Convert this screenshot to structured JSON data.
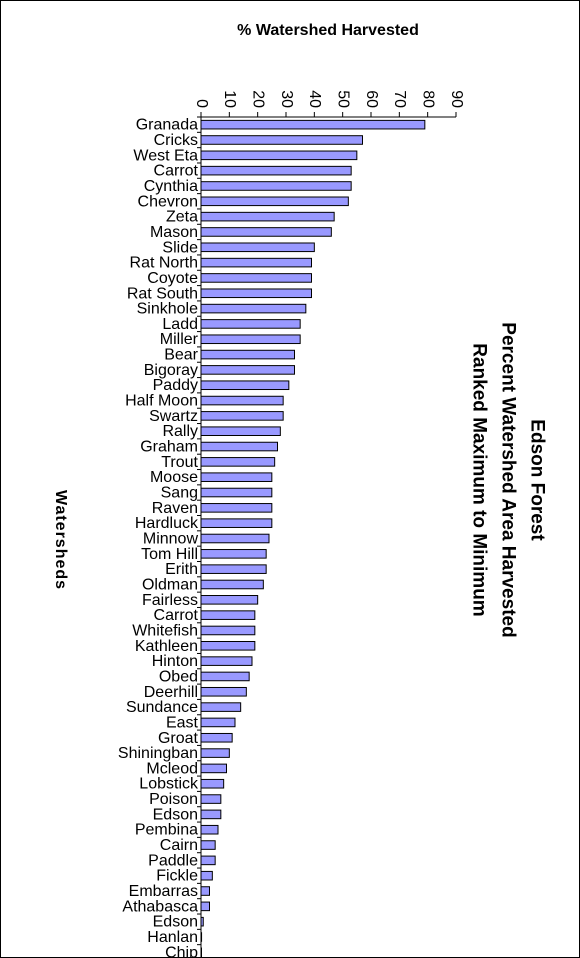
{
  "chart_data": {
    "type": "bar",
    "orientation": "horizontal",
    "title_lines": [
      "Edson Forest",
      "Percent Watershed Area Harvested",
      "Ranked Maximum to Minimum"
    ],
    "xlabel": "% Watershed Harvested",
    "ylabel": "Watersheds",
    "xlim": [
      0,
      90
    ],
    "xticks": [
      0,
      10,
      20,
      30,
      40,
      50,
      60,
      70,
      80,
      90
    ],
    "grid": false,
    "legend": "none",
    "bar_color": "#9999ff",
    "categories": [
      "Granada",
      "Cricks",
      "West Eta",
      "Carrot",
      "Cynthia",
      "Chevron",
      "Zeta",
      "Mason",
      "Slide",
      "Rat North",
      "Coyote",
      "Rat South",
      "Sinkhole",
      "Ladd",
      "Miller",
      "Bear",
      "Bigoray",
      "Paddy",
      "Half Moon",
      "Swartz",
      "Rally",
      "Graham",
      "Trout",
      "Moose",
      "Sang",
      "Raven",
      "Hardluck",
      "Minnow",
      "Tom Hill",
      "Erith",
      "Oldman",
      "Fairless",
      "Carrot",
      "Whitefish",
      "Kathleen",
      "Hinton",
      "Obed",
      "Deerhill",
      "Sundance",
      "East",
      "Groat",
      "Shiningban",
      "Mcleod",
      "Lobstick",
      "Poison",
      "Edson",
      "Pembina",
      "Cairn",
      "Paddle",
      "Fickle",
      "Embarras",
      "Athabasca",
      "Edson",
      "Hanlan",
      "Chip"
    ],
    "values": [
      79,
      57,
      55,
      53,
      53,
      52,
      47,
      46,
      40,
      39,
      39,
      39,
      37,
      35,
      35,
      33,
      33,
      31,
      29,
      29,
      28,
      27,
      26,
      25,
      25,
      25,
      25,
      24,
      23,
      23,
      22,
      20,
      19,
      19,
      19,
      18,
      17,
      16,
      14,
      12,
      11,
      10,
      9,
      8,
      7,
      7,
      6,
      5,
      5,
      4,
      3,
      3,
      0.8,
      0.2,
      0.1
    ]
  }
}
